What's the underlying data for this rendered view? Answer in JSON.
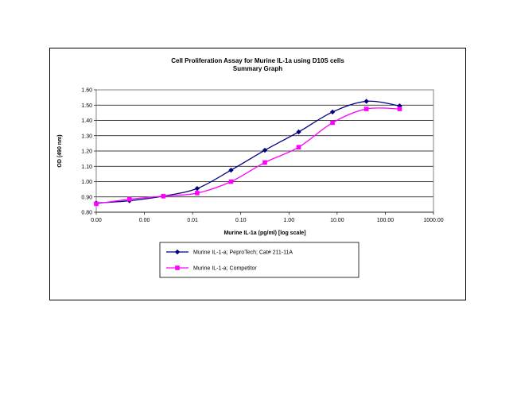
{
  "chart_data": {
    "type": "line",
    "title": "Cell Proliferation Assay for Murine IL-1a using D10S cells",
    "subtitle": "Summary Graph",
    "xlabel": "Murine IL-1a (pg/ml) [log scale]",
    "ylabel": "OD (490 nm)",
    "x_scale": "log",
    "xlim": [
      0.001,
      1000
    ],
    "ylim": [
      0.8,
      1.6
    ],
    "x_ticks": [
      "0.00",
      "0.00",
      "0.01",
      "0.10",
      "1.00",
      "10.00",
      "100.00",
      "1000.00"
    ],
    "y_ticks": [
      "0.80",
      "0.90",
      "1.00",
      "1.10",
      "1.20",
      "1.30",
      "1.40",
      "1.50",
      "1.60"
    ],
    "grid": "horizontal",
    "legend_position": "bottom",
    "series": [
      {
        "name": "Murine IL-1-a; PeproTech; Cat# 211-11A",
        "color": "#000080",
        "marker": "diamond",
        "x": [
          0.001,
          0.0039,
          0.0156,
          0.0625,
          0.25,
          1,
          4,
          16,
          64,
          250
        ],
        "y": [
          0.86,
          0.875,
          0.905,
          0.955,
          1.075,
          1.205,
          1.325,
          1.455,
          1.525,
          1.495
        ]
      },
      {
        "name": "Murine IL-1-a; Competitor",
        "color": "#FF00FF",
        "marker": "square",
        "x": [
          0.001,
          0.0039,
          0.0156,
          0.0625,
          0.25,
          1,
          4,
          16,
          64,
          250
        ],
        "y": [
          0.855,
          0.885,
          0.905,
          0.925,
          1.0,
          1.125,
          1.225,
          1.385,
          1.475,
          1.475
        ]
      }
    ]
  }
}
